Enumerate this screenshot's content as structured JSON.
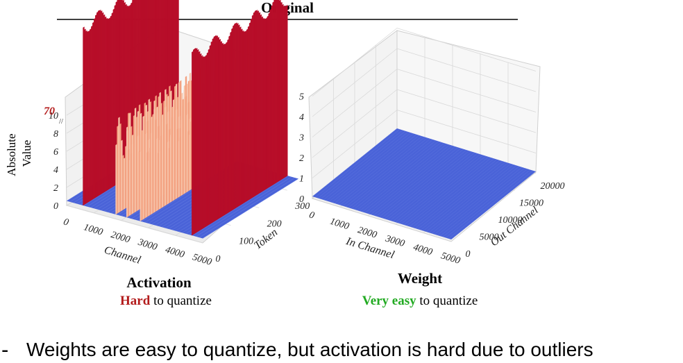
{
  "title": "Original",
  "colors": {
    "hard": "#b31b1b",
    "easy": "#22aa22",
    "red_surface": "#b70d28",
    "red_edge": "#e8404a",
    "salmon": "#f3a07f",
    "salmon_light": "#f7c2a7",
    "blue_floor": "#4a63d8",
    "blue_floor_light": "#6f86e6",
    "grid": "#d9d9d9",
    "pane": "#fafafa"
  },
  "chart_data": [
    {
      "name": "Activation",
      "type": "surface3d",
      "title": "Activation",
      "subtitle": {
        "highlight": "Hard",
        "rest": " to quantize"
      },
      "zlabel": "Absolute\nValue",
      "xlabel": "Channel",
      "ylabel": "Token",
      "x_ticks": [
        "0",
        "1000",
        "2000",
        "3000",
        "4000",
        "5000"
      ],
      "y_ticks": [
        "0",
        "100",
        "200",
        "300"
      ],
      "z_ticks": [
        "0",
        "2",
        "4",
        "6",
        "8",
        "10"
      ],
      "z_break_label": "70",
      "xlim": [
        0,
        5000
      ],
      "ylim": [
        0,
        340
      ],
      "zlim": [
        0,
        12
      ],
      "outlier_channels": [
        {
          "channel": 600,
          "peak": 70,
          "style": "red"
        },
        {
          "channel": 1800,
          "peak": 11,
          "style": "salmon"
        },
        {
          "channel": 2200,
          "peak": 13,
          "style": "salmon"
        },
        {
          "channel": 2700,
          "peak": 12,
          "style": "salmon"
        },
        {
          "channel": 4600,
          "peak": 70,
          "style": "red"
        }
      ],
      "baseline_value": 0.5
    },
    {
      "name": "Weight",
      "type": "surface3d",
      "title": "Weight",
      "subtitle": {
        "highlight": "Very easy",
        "rest": " to quantize"
      },
      "xlabel": "In Channel",
      "ylabel": "Out Channel",
      "x_ticks": [
        "0",
        "1000",
        "2000",
        "3000",
        "4000",
        "5000"
      ],
      "y_ticks": [
        "0",
        "5000",
        "10000",
        "15000",
        "20000"
      ],
      "z_ticks": [
        "0",
        "1",
        "2",
        "3",
        "4",
        "5"
      ],
      "xlim": [
        0,
        5000
      ],
      "ylim": [
        0,
        20000
      ],
      "zlim": [
        0,
        5
      ],
      "baseline_value": 0.1
    }
  ],
  "note": {
    "bullet": "-",
    "text": "Weights are easy to quantize, but activation is hard due to outliers"
  }
}
